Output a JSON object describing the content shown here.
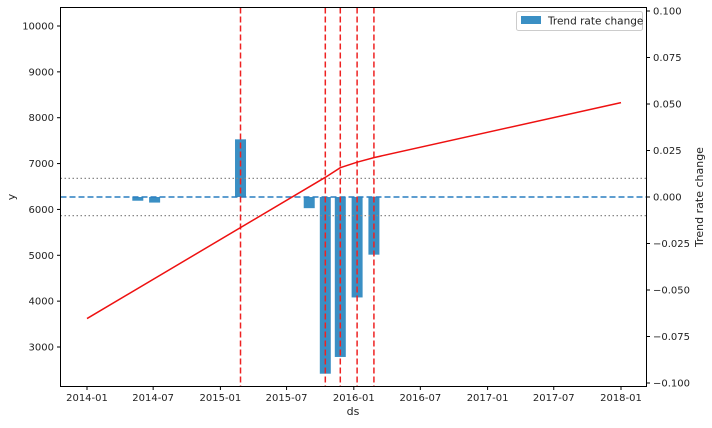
{
  "chart_data": {
    "type": "bar+line",
    "title": "",
    "xlabel": "ds",
    "ylabel_left": "y",
    "ylabel_right": "Trend rate change",
    "x_ticks": [
      "2014-01",
      "2014-07",
      "2015-01",
      "2015-07",
      "2016-01",
      "2016-07",
      "2017-01",
      "2017-07",
      "2018-01"
    ],
    "y_left_ticks": [
      3000,
      4000,
      5000,
      6000,
      7000,
      8000,
      9000,
      10000
    ],
    "y_left_range": [
      2150,
      10400
    ],
    "y_right_ticks": [
      "0.100",
      "0.075",
      "0.050",
      "0.025",
      "0.000",
      "−0.025",
      "−0.050",
      "−0.075",
      "−0.100"
    ],
    "y_right_range": [
      -0.103,
      0.103
    ],
    "legend": [
      {
        "label": "Trend rate change",
        "color": "#3a8fc4"
      }
    ],
    "legend_position": "upper right",
    "grid": false,
    "trend_line": {
      "name": "trend",
      "color": "#ee1111",
      "points": [
        {
          "x": "2014-01-01",
          "y": 3620
        },
        {
          "x": "2015-10-15",
          "y": 6700
        },
        {
          "x": "2015-11-25",
          "y": 6910
        },
        {
          "x": "2016-01-10",
          "y": 7030
        },
        {
          "x": "2016-02-25",
          "y": 7130
        },
        {
          "x": "2018-01-01",
          "y": 8330
        }
      ]
    },
    "bars": [
      {
        "x": "2014-05-20",
        "value": -0.002
      },
      {
        "x": "2014-07-05",
        "value": -0.003
      },
      {
        "x": "2015-02-25",
        "value": 0.031
      },
      {
        "x": "2015-09-01",
        "value": -0.006
      },
      {
        "x": "2015-10-15",
        "value": -0.095
      },
      {
        "x": "2015-11-25",
        "value": -0.086
      },
      {
        "x": "2016-01-10",
        "value": -0.054
      },
      {
        "x": "2016-02-25",
        "value": -0.031
      }
    ],
    "changepoints": [
      "2015-02-25",
      "2015-10-15",
      "2015-11-25",
      "2016-01-10",
      "2016-02-25"
    ],
    "horizontal_lines": [
      {
        "y_right": 0.0,
        "style": "dashed",
        "color": "#2a7fc0"
      },
      {
        "y_right": 0.01,
        "style": "dotted",
        "color": "#888888"
      },
      {
        "y_right": -0.01,
        "style": "dotted",
        "color": "#888888"
      }
    ]
  }
}
